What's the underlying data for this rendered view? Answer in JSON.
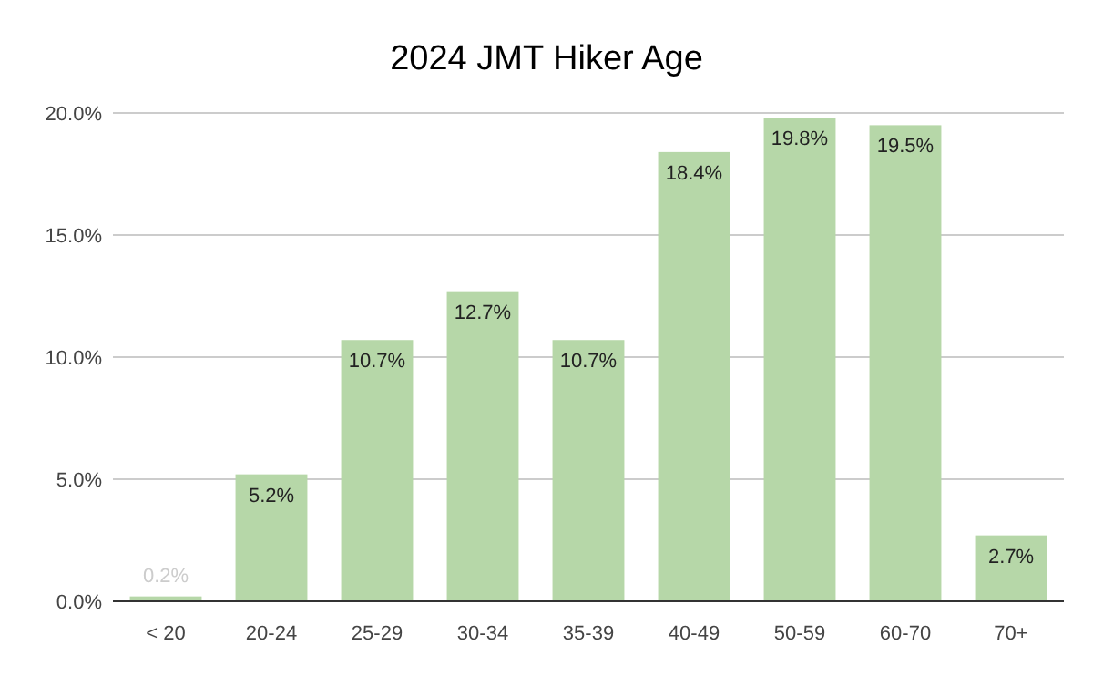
{
  "chart_data": {
    "type": "bar",
    "title": "2024 JMT Hiker Age",
    "categories": [
      "< 20",
      "20-24",
      "25-29",
      "30-34",
      "35-39",
      "40-49",
      "50-59",
      "60-70",
      "70+"
    ],
    "values": [
      0.2,
      5.2,
      10.7,
      12.7,
      10.7,
      18.4,
      19.8,
      19.5,
      2.7
    ],
    "value_labels": [
      "0.2%",
      "5.2%",
      "10.7%",
      "12.7%",
      "10.7%",
      "18.4%",
      "19.8%",
      "19.5%",
      "2.7%"
    ],
    "color": "#b6d7a8",
    "ylim": [
      0,
      20
    ],
    "yticks": [
      {
        "value": 0,
        "label": "0.0%"
      },
      {
        "value": 5,
        "label": "5.0%"
      },
      {
        "value": 10,
        "label": "10.0%"
      },
      {
        "value": 15,
        "label": "15.0%"
      },
      {
        "value": 20,
        "label": "20.0%"
      }
    ],
    "grid": "y"
  }
}
